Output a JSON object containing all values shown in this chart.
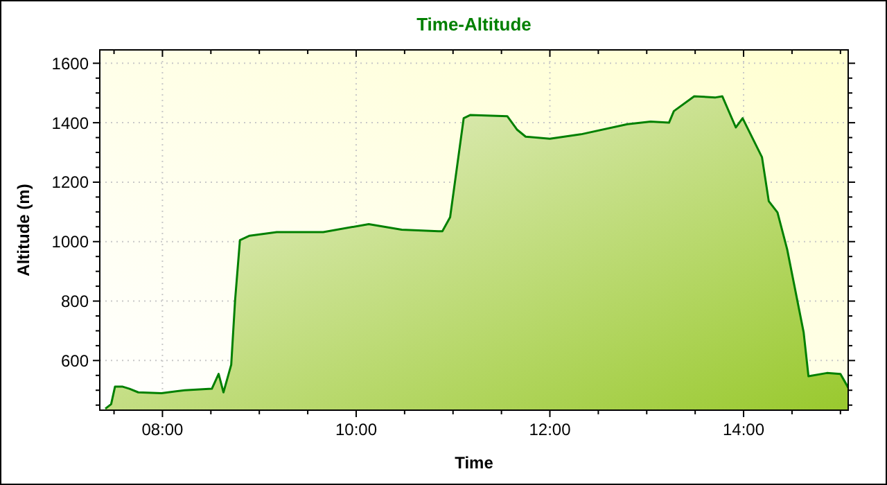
{
  "chart_data": {
    "type": "area",
    "title": "Time-Altitude",
    "xlabel": "Time",
    "ylabel": "Altitude (m)",
    "x": [
      7.41,
      7.47,
      7.51,
      7.59,
      7.66,
      7.75,
      7.99,
      8.23,
      8.51,
      8.58,
      8.63,
      8.71,
      8.75,
      8.8,
      8.9,
      9.18,
      9.66,
      10.13,
      10.47,
      10.85,
      10.89,
      10.97,
      11.11,
      11.18,
      11.56,
      11.66,
      11.75,
      12.0,
      12.32,
      12.8,
      13.04,
      13.23,
      13.28,
      13.49,
      13.71,
      13.78,
      13.92,
      13.99,
      14.19,
      14.26,
      14.35,
      14.45,
      14.62,
      14.67,
      14.86,
      15.0,
      15.08
    ],
    "series": [
      {
        "color": "#008000",
        "values": [
          438,
          453,
          512,
          512,
          505,
          493,
          490,
          500,
          505,
          555,
          493,
          586,
          803,
          1005,
          1020,
          1032,
          1032,
          1059,
          1040,
          1035,
          1035,
          1082,
          1415,
          1426,
          1422,
          1377,
          1353,
          1346,
          1361,
          1395,
          1404,
          1400,
          1439,
          1489,
          1485,
          1489,
          1384,
          1415,
          1284,
          1136,
          1098,
          974,
          695,
          547,
          558,
          555,
          509
        ]
      }
    ],
    "xlim": [
      7.353,
      15.08
    ],
    "xticks": [
      {
        "value": 7.5,
        "label": null
      },
      {
        "value": 8,
        "label": "08:00"
      },
      {
        "value": 8.5,
        "label": null
      },
      {
        "value": 9,
        "label": null
      },
      {
        "value": 9.5,
        "label": null
      },
      {
        "value": 10,
        "label": "10:00"
      },
      {
        "value": 10.5,
        "label": null
      },
      {
        "value": 11,
        "label": null
      },
      {
        "value": 11.5,
        "label": null
      },
      {
        "value": 12,
        "label": "12:00"
      },
      {
        "value": 12.5,
        "label": null
      },
      {
        "value": 13,
        "label": null
      },
      {
        "value": 13.5,
        "label": null
      },
      {
        "value": 14,
        "label": "14:00"
      },
      {
        "value": 14.5,
        "label": null
      },
      {
        "value": 15,
        "label": null
      }
    ],
    "ylim": [
      433,
      1645
    ],
    "yticks": [
      {
        "value": 450,
        "label": null
      },
      {
        "value": 500,
        "label": null
      },
      {
        "value": 550,
        "label": null
      },
      600,
      {
        "value": 650,
        "label": null
      },
      {
        "value": 700,
        "label": null
      },
      {
        "value": 750,
        "label": null
      },
      800,
      {
        "value": 850,
        "label": null
      },
      {
        "value": 900,
        "label": null
      },
      {
        "value": 950,
        "label": null
      },
      1000,
      {
        "value": 1050,
        "label": null
      },
      {
        "value": 1100,
        "label": null
      },
      {
        "value": 1150,
        "label": null
      },
      1200,
      {
        "value": 1250,
        "label": null
      },
      {
        "value": 1300,
        "label": null
      },
      {
        "value": 1350,
        "label": null
      },
      1400,
      {
        "value": 1450,
        "label": null
      },
      {
        "value": 1500,
        "label": null
      },
      {
        "value": 1550,
        "label": null
      },
      1600
    ],
    "grid": true,
    "marker": "none",
    "line_style": "solid"
  }
}
